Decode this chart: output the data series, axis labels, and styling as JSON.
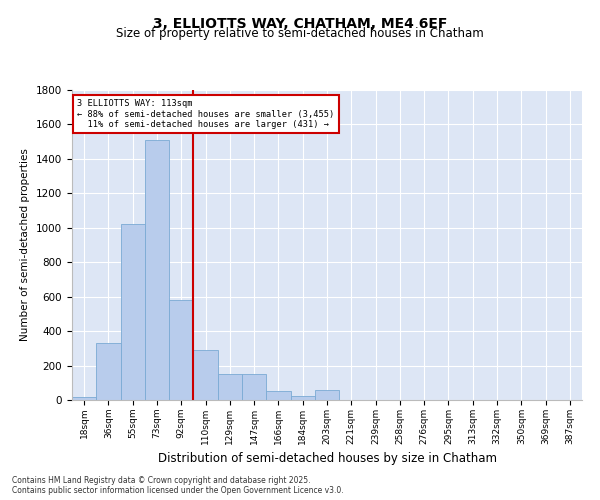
{
  "title": "3, ELLIOTTS WAY, CHATHAM, ME4 6EF",
  "subtitle": "Size of property relative to semi-detached houses in Chatham",
  "xlabel": "Distribution of semi-detached houses by size in Chatham",
  "ylabel": "Number of semi-detached properties",
  "bins": [
    "18sqm",
    "36sqm",
    "55sqm",
    "73sqm",
    "92sqm",
    "110sqm",
    "129sqm",
    "147sqm",
    "166sqm",
    "184sqm",
    "203sqm",
    "221sqm",
    "239sqm",
    "258sqm",
    "276sqm",
    "295sqm",
    "313sqm",
    "332sqm",
    "350sqm",
    "369sqm",
    "387sqm"
  ],
  "values": [
    15,
    330,
    1020,
    1510,
    580,
    290,
    150,
    150,
    50,
    25,
    60,
    0,
    0,
    0,
    0,
    0,
    0,
    0,
    0,
    0,
    0
  ],
  "bar_color": "#b8ccec",
  "bar_edge_color": "#7aaad4",
  "vline_color": "#cc0000",
  "vline_bin_index": 5,
  "property_size": "113sqm",
  "pct_smaller": 88,
  "count_smaller": 3455,
  "pct_larger": 11,
  "count_larger": 431,
  "annotation_box_color": "#cc0000",
  "ylim": [
    0,
    1800
  ],
  "yticks": [
    0,
    200,
    400,
    600,
    800,
    1000,
    1200,
    1400,
    1600,
    1800
  ],
  "background_color": "#dde6f5",
  "footer": "Contains HM Land Registry data © Crown copyright and database right 2025.\nContains public sector information licensed under the Open Government Licence v3.0.",
  "title_fontsize": 10,
  "subtitle_fontsize": 8.5,
  "xlabel_fontsize": 8.5,
  "ylabel_fontsize": 7.5
}
